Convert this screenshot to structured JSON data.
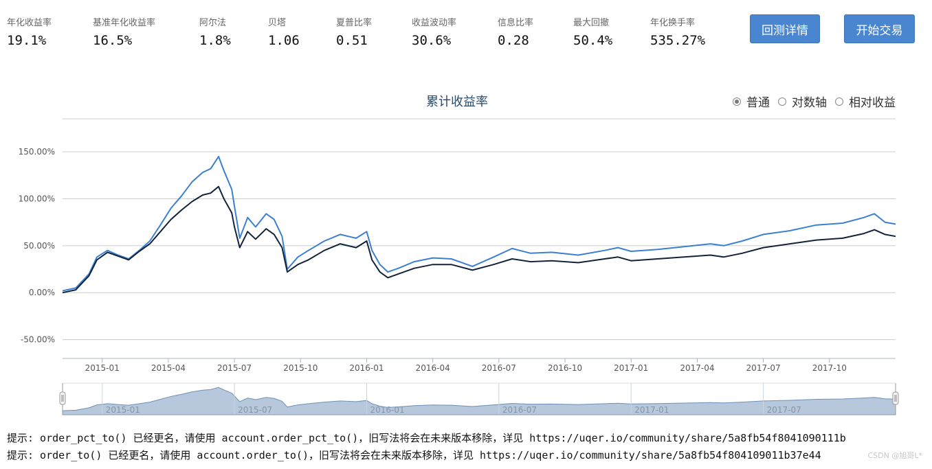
{
  "metrics": [
    {
      "label": "年化收益率",
      "value": "19.1%"
    },
    {
      "label": "基准年化收益率",
      "value": "16.5%"
    },
    {
      "label": "阿尔法",
      "value": "1.8%"
    },
    {
      "label": "贝塔",
      "value": "1.06"
    },
    {
      "label": "夏普比率",
      "value": "0.51"
    },
    {
      "label": "收益波动率",
      "value": "30.6%"
    },
    {
      "label": "信息比率",
      "value": "0.28"
    },
    {
      "label": "最大回撤",
      "value": "50.4%"
    },
    {
      "label": "年化换手率",
      "value": "535.27%"
    }
  ],
  "buttons": {
    "detail": "回测详情",
    "trade": "开始交易"
  },
  "radio_options": [
    {
      "label": "普通",
      "selected": true
    },
    {
      "label": "对数轴",
      "selected": false
    },
    {
      "label": "相对收益",
      "selected": false
    }
  ],
  "log_lines": [
    "提示:  order_pct_to() 已经更名，请使用 account.order_pct_to()，旧写法将会在未来版本移除，详见 https://uqer.io/community/share/5a8fb54f8041090111b",
    "提示:  order_to() 已经更名，请使用 account.order_to()，旧写法将会在未来版本移除，详见 https://uqer.io/community/share/5a8fb54f804109011b37e44"
  ],
  "watermark": "CSDN @旭哥L*",
  "colors": {
    "strategy": "#3a7fd0",
    "benchmark": "#12223a",
    "navigator_fill": "#b7c8dc",
    "navigator_line": "#6d8fb6",
    "grid": "#cccccc",
    "button": "#4a86cf"
  },
  "chart_data": {
    "type": "line",
    "title": "累计收益率",
    "y_ticks": [
      "150.00%",
      "100.00%",
      "50.00%",
      "0.00%",
      "-50.00%"
    ],
    "y_tick_values": [
      150,
      100,
      50,
      0,
      -50
    ],
    "ylim": [
      -70,
      180
    ],
    "y_unit": "%",
    "x_ticks": [
      "2015-01",
      "2015-04",
      "2015-07",
      "2015-10",
      "2016-01",
      "2016-04",
      "2016-07",
      "2016-10",
      "2017-01",
      "2017-04",
      "2017-07",
      "2017-10"
    ],
    "x_tick_positions": [
      2015.0,
      2015.25,
      2015.5,
      2015.75,
      2016.0,
      2016.25,
      2016.5,
      2016.75,
      2017.0,
      2017.25,
      2017.5,
      2017.75
    ],
    "xlim": [
      2014.85,
      2018.0
    ],
    "navigator_ticks": [
      "2015-01",
      "2015-07",
      "2016-01",
      "2016-07",
      "2017-01",
      "2017-07"
    ],
    "navigator_tick_positions": [
      2015.0,
      2015.5,
      2016.0,
      2016.5,
      2017.0,
      2017.5
    ],
    "grid": true,
    "series": [
      {
        "x": [
          2014.85,
          2014.9,
          2014.95,
          2014.98,
          2015.02,
          2015.06,
          2015.1,
          2015.14,
          2015.18,
          2015.22,
          2015.26,
          2015.3,
          2015.34,
          2015.38,
          2015.41,
          2015.44,
          2015.46,
          2015.49,
          2015.5,
          2015.52,
          2015.55,
          2015.58,
          2015.62,
          2015.65,
          2015.68,
          2015.7,
          2015.74,
          2015.78,
          2015.84,
          2015.9,
          2015.96,
          2016.0,
          2016.02,
          2016.05,
          2016.08,
          2016.12,
          2016.18,
          2016.25,
          2016.32,
          2016.4,
          2016.48,
          2016.55,
          2016.62,
          2016.7,
          2016.8,
          2016.9,
          2016.95,
          2017.0,
          2017.1,
          2017.2,
          2017.3,
          2017.35,
          2017.42,
          2017.5,
          2017.6,
          2017.7,
          2017.8,
          2017.88,
          2017.92,
          2017.96,
          2018.0
        ],
        "values": [
          2,
          5,
          20,
          38,
          45,
          40,
          36,
          45,
          55,
          72,
          90,
          103,
          118,
          128,
          132,
          145,
          130,
          110,
          92,
          58,
          80,
          70,
          84,
          78,
          60,
          25,
          38,
          45,
          55,
          62,
          58,
          65,
          45,
          30,
          22,
          26,
          33,
          37,
          36,
          28,
          38,
          47,
          42,
          43,
          40,
          45,
          48,
          44,
          46,
          49,
          52,
          50,
          55,
          62,
          66,
          72,
          74,
          80,
          84,
          75,
          73
        ]
      },
      {
        "x": [
          2014.85,
          2014.9,
          2014.95,
          2014.98,
          2015.02,
          2015.06,
          2015.1,
          2015.14,
          2015.18,
          2015.22,
          2015.26,
          2015.3,
          2015.34,
          2015.38,
          2015.41,
          2015.44,
          2015.46,
          2015.49,
          2015.5,
          2015.52,
          2015.55,
          2015.58,
          2015.62,
          2015.65,
          2015.68,
          2015.7,
          2015.74,
          2015.78,
          2015.84,
          2015.9,
          2015.96,
          2016.0,
          2016.02,
          2016.05,
          2016.08,
          2016.12,
          2016.18,
          2016.25,
          2016.32,
          2016.4,
          2016.48,
          2016.55,
          2016.62,
          2016.7,
          2016.8,
          2016.9,
          2016.95,
          2017.0,
          2017.1,
          2017.2,
          2017.3,
          2017.35,
          2017.42,
          2017.5,
          2017.6,
          2017.7,
          2017.8,
          2017.88,
          2017.92,
          2017.96,
          2018.0
        ],
        "values": [
          0,
          3,
          18,
          35,
          43,
          39,
          35,
          44,
          52,
          65,
          78,
          88,
          97,
          104,
          106,
          113,
          100,
          85,
          70,
          48,
          65,
          57,
          68,
          62,
          48,
          22,
          30,
          35,
          45,
          52,
          48,
          55,
          35,
          22,
          16,
          20,
          26,
          30,
          30,
          24,
          30,
          36,
          33,
          34,
          32,
          36,
          38,
          34,
          36,
          38,
          40,
          38,
          42,
          48,
          52,
          56,
          58,
          63,
          67,
          62,
          60
        ]
      }
    ]
  }
}
